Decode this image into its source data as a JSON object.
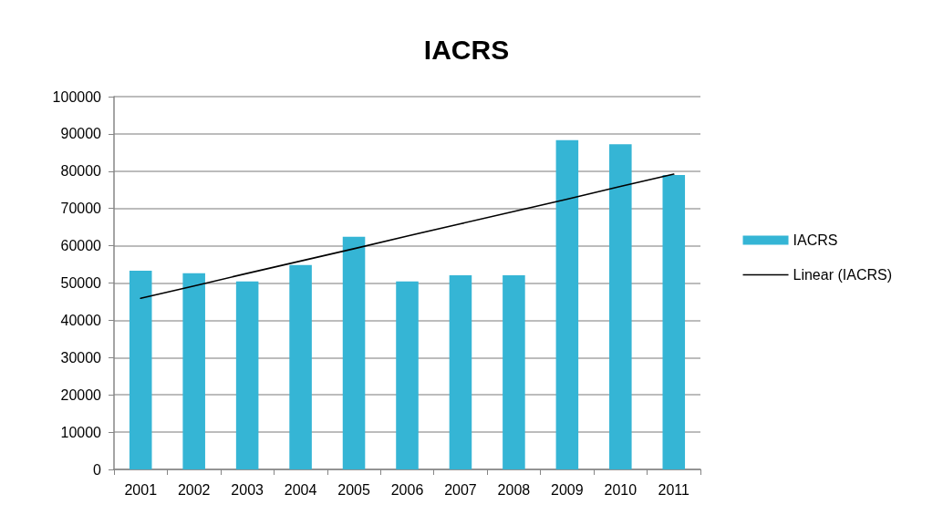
{
  "chart_data": {
    "type": "bar",
    "title": "IACRS",
    "categories": [
      "2001",
      "2002",
      "2003",
      "2004",
      "2005",
      "2006",
      "2007",
      "2008",
      "2009",
      "2010",
      "2011"
    ],
    "series": [
      {
        "name": "IACRS",
        "color": "#35b5d5",
        "values": [
          53300,
          52600,
          50400,
          54800,
          62400,
          50400,
          52100,
          52100,
          88300,
          87200,
          79000
        ]
      },
      {
        "name": "Linear (IACRS)",
        "type": "line",
        "color": "#000000",
        "values": [
          45900,
          49200,
          52600,
          55900,
          59200,
          62600,
          65900,
          69200,
          72500,
          75900,
          79200
        ],
        "marker": "none",
        "line_style": "solid"
      }
    ],
    "ylim": [
      0,
      100000
    ],
    "yticks": [
      0,
      10000,
      20000,
      30000,
      40000,
      50000,
      60000,
      70000,
      80000,
      90000,
      100000
    ],
    "grid": "y",
    "legend": "right"
  }
}
